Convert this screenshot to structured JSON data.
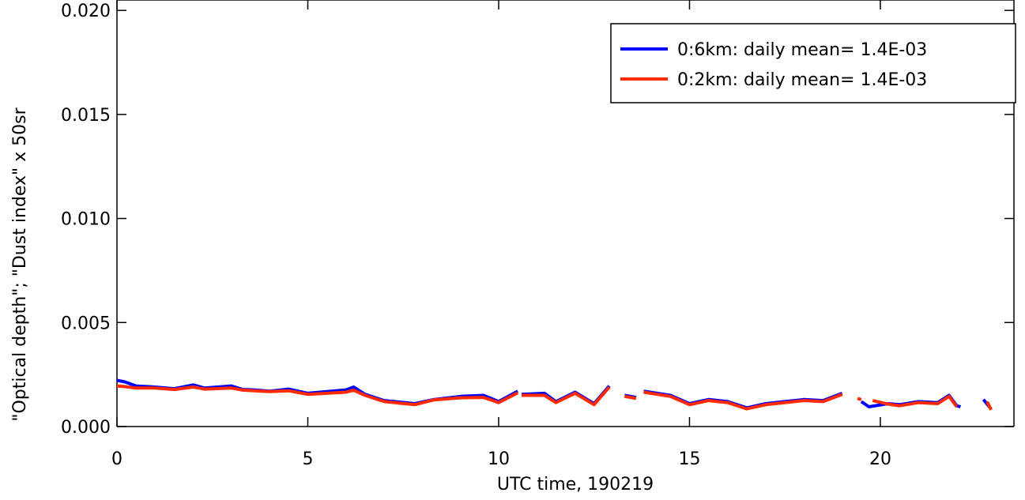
{
  "chart_data": {
    "type": "line",
    "xlabel": "UTC time, 190219",
    "ylabel": "\"Optical depth\"; \"Dust index\" x 50sr",
    "xlim": [
      0,
      23.5
    ],
    "ylim": [
      0.0,
      0.0205
    ],
    "xticks": [
      0,
      5,
      10,
      15,
      20
    ],
    "xtick_labels": [
      "0",
      "5",
      "10",
      "15",
      "20"
    ],
    "yticks": [
      0.0,
      0.005,
      0.01,
      0.015,
      0.02
    ],
    "ytick_labels": [
      "0.000",
      "0.005",
      "0.010",
      "0.015",
      "0.020"
    ],
    "grid": false,
    "legend_position": "top-right",
    "series": [
      {
        "name": "0:6km: daily mean= 1.4E-03",
        "color": "#0000ff",
        "segments": [
          [
            [
              0.0,
              0.00222
            ],
            [
              0.2,
              0.00215
            ],
            [
              0.5,
              0.00195
            ],
            [
              1.0,
              0.0019
            ],
            [
              1.5,
              0.00182
            ],
            [
              2.0,
              0.002
            ],
            [
              2.3,
              0.00185
            ],
            [
              3.0,
              0.00195
            ],
            [
              3.3,
              0.00178
            ],
            [
              3.6,
              0.00176
            ],
            [
              4.0,
              0.0017
            ],
            [
              4.5,
              0.0018
            ],
            [
              5.0,
              0.0016
            ],
            [
              5.5,
              0.00168
            ],
            [
              6.0,
              0.00176
            ],
            [
              6.2,
              0.0019
            ],
            [
              6.5,
              0.00155
            ],
            [
              7.0,
              0.00125
            ],
            [
              7.8,
              0.0011
            ],
            [
              8.3,
              0.0013
            ],
            [
              9.0,
              0.00145
            ],
            [
              9.6,
              0.0015
            ],
            [
              10.0,
              0.0012
            ],
            [
              10.5,
              0.0017
            ]
          ],
          [
            [
              10.6,
              0.00155
            ],
            [
              11.2,
              0.0016
            ],
            [
              11.5,
              0.0012
            ],
            [
              12.0,
              0.00165
            ],
            [
              12.5,
              0.0011
            ],
            [
              12.9,
              0.00195
            ]
          ],
          [
            [
              13.3,
              0.0015
            ],
            [
              13.6,
              0.0014
            ]
          ],
          [
            [
              13.8,
              0.0017
            ],
            [
              14.5,
              0.0015
            ],
            [
              15.0,
              0.0011
            ],
            [
              15.5,
              0.0013
            ],
            [
              16.0,
              0.0012
            ],
            [
              16.5,
              0.0009
            ],
            [
              17.0,
              0.0011
            ],
            [
              17.5,
              0.0012
            ],
            [
              18.0,
              0.0013
            ],
            [
              18.5,
              0.00125
            ],
            [
              19.0,
              0.0016
            ]
          ],
          [
            [
              19.5,
              0.0012
            ],
            [
              19.7,
              0.00095
            ],
            [
              20.2,
              0.0011
            ],
            [
              20.5,
              0.00105
            ],
            [
              21.0,
              0.0012
            ],
            [
              21.5,
              0.00115
            ],
            [
              21.8,
              0.0015
            ],
            [
              22.0,
              0.001
            ],
            [
              22.1,
              0.00095
            ]
          ],
          [
            [
              22.7,
              0.0013
            ],
            [
              22.9,
              0.00085
            ]
          ]
        ]
      },
      {
        "name": "0:2km: daily mean= 1.4E-03",
        "color": "#ff2a00",
        "segments": [
          [
            [
              0.0,
              0.00195
            ],
            [
              0.2,
              0.00192
            ],
            [
              0.5,
              0.00185
            ],
            [
              1.0,
              0.00185
            ],
            [
              1.5,
              0.00178
            ],
            [
              2.0,
              0.0019
            ],
            [
              2.3,
              0.0018
            ],
            [
              3.0,
              0.00185
            ],
            [
              3.3,
              0.00175
            ],
            [
              3.6,
              0.00172
            ],
            [
              4.0,
              0.00168
            ],
            [
              4.5,
              0.00172
            ],
            [
              5.0,
              0.00155
            ],
            [
              5.5,
              0.0016
            ],
            [
              6.0,
              0.00165
            ],
            [
              6.2,
              0.00175
            ],
            [
              6.5,
              0.0015
            ],
            [
              7.0,
              0.0012
            ],
            [
              7.8,
              0.00105
            ],
            [
              8.3,
              0.00128
            ],
            [
              9.0,
              0.00138
            ],
            [
              9.6,
              0.0014
            ],
            [
              10.0,
              0.00115
            ],
            [
              10.5,
              0.00162
            ]
          ],
          [
            [
              10.6,
              0.0015
            ],
            [
              11.2,
              0.0015
            ],
            [
              11.5,
              0.00115
            ],
            [
              12.0,
              0.0016
            ],
            [
              12.5,
              0.00105
            ],
            [
              12.9,
              0.0019
            ]
          ],
          [
            [
              13.3,
              0.00145
            ],
            [
              13.6,
              0.00135
            ]
          ],
          [
            [
              13.8,
              0.00165
            ],
            [
              14.5,
              0.00145
            ],
            [
              15.0,
              0.00105
            ],
            [
              15.5,
              0.00125
            ],
            [
              16.0,
              0.00115
            ],
            [
              16.5,
              0.00085
            ],
            [
              17.0,
              0.00105
            ],
            [
              17.5,
              0.00115
            ],
            [
              18.0,
              0.00125
            ],
            [
              18.5,
              0.0012
            ],
            [
              19.0,
              0.00155
            ]
          ],
          [
            [
              19.4,
              0.00135
            ],
            [
              19.5,
              0.0013
            ]
          ],
          [
            [
              19.8,
              0.00125
            ],
            [
              20.2,
              0.00108
            ],
            [
              20.5,
              0.001
            ],
            [
              21.0,
              0.00115
            ],
            [
              21.5,
              0.0011
            ],
            [
              21.8,
              0.00145
            ],
            [
              22.0,
              0.00095
            ]
          ],
          [
            [
              22.8,
              0.0012
            ],
            [
              22.9,
              0.0008
            ]
          ]
        ]
      }
    ]
  }
}
